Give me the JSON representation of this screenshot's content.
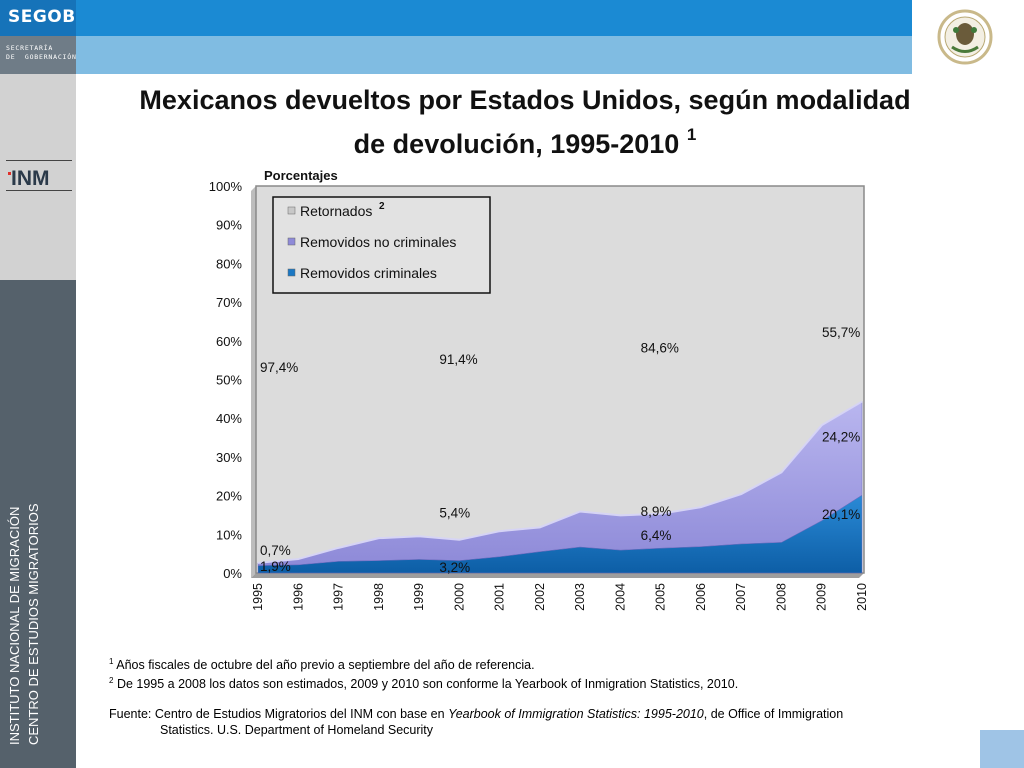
{
  "header": {
    "brand": "SEGOB",
    "secretaria": "SECRETARÍA\nDE  GOBERNACIÓN",
    "logo_inm": "INM"
  },
  "sidebar": {
    "line1": "INSTITUTO NACIONAL DE MIGRACIÓN",
    "line2": "CENTRO DE ESTUDIOS MIGRATORIOS"
  },
  "title": {
    "text": "Mexicanos devueltos por Estados Unidos, según modalidad de devolución, 1995-2010",
    "note_mark": "1"
  },
  "chart_data": {
    "type": "area",
    "stacked": "percent",
    "ylabel": "Porcentajes",
    "ylim": [
      0,
      100
    ],
    "yticks": [
      "0%",
      "10%",
      "20%",
      "30%",
      "40%",
      "50%",
      "60%",
      "70%",
      "80%",
      "90%",
      "100%"
    ],
    "categories": [
      "1995",
      "1996",
      "1997",
      "1998",
      "1999",
      "2000",
      "2001",
      "2002",
      "2003",
      "2004",
      "2005",
      "2006",
      "2007",
      "2008",
      "2009",
      "2010"
    ],
    "series": [
      {
        "name": "Removidos criminales",
        "color": "#1b78c4",
        "values": [
          1.9,
          2.1,
          3.0,
          3.2,
          3.5,
          3.2,
          4.2,
          5.5,
          6.7,
          5.9,
          6.4,
          6.8,
          7.5,
          7.9,
          13.5,
          20.1
        ]
      },
      {
        "name": "Removidos no criminales",
        "color": "#a9a6e6",
        "values": [
          0.7,
          1.5,
          3.5,
          5.8,
          6.0,
          5.4,
          6.6,
          6.3,
          9.2,
          9.0,
          8.9,
          10.2,
          12.9,
          18.1,
          24.7,
          24.2
        ]
      },
      {
        "name": "Retornados",
        "note_mark": "2",
        "color": "#dcdcdc",
        "values": [
          97.4,
          96.4,
          93.5,
          91.0,
          90.5,
          91.4,
          89.2,
          88.2,
          84.1,
          85.1,
          84.6,
          83.0,
          79.6,
          74.0,
          61.8,
          55.7
        ]
      }
    ],
    "data_labels": [
      {
        "text": "97,4%",
        "year": "1995",
        "series": "Retornados"
      },
      {
        "text": "0,7%",
        "year": "1995",
        "series": "Removidos no criminales"
      },
      {
        "text": "1,9%",
        "year": "1995",
        "series": "Removidos criminales"
      },
      {
        "text": "91,4%",
        "year": "2000",
        "series": "Retornados"
      },
      {
        "text": "5,4%",
        "year": "2000",
        "series": "Removidos no criminales"
      },
      {
        "text": "3,2%",
        "year": "2000",
        "series": "Removidos criminales"
      },
      {
        "text": "84,6%",
        "year": "2005",
        "series": "Retornados"
      },
      {
        "text": "8,9%",
        "year": "2005",
        "series": "Removidos no criminales"
      },
      {
        "text": "6,4%",
        "year": "2005",
        "series": "Removidos criminales"
      },
      {
        "text": "55,7%",
        "year": "2010",
        "series": "Retornados"
      },
      {
        "text": "24,2%",
        "year": "2010",
        "series": "Removidos no criminales"
      },
      {
        "text": "20,1%",
        "year": "2010",
        "series": "Removidos criminales"
      }
    ],
    "legend_position": "top-left"
  },
  "notes": {
    "note1_mark": "1",
    "note1": "Años fiscales de octubre del año previo a septiembre del año de referencia.",
    "note2_mark": "2",
    "note2": "De 1995 a 2008 los datos son estimados, 2009 y 2010 son conforme la Yearbook of Inmigration Statistics, 2010.",
    "source_prefix": "Fuente: Centro de Estudios Migratorios del INM con base en ",
    "source_title": "Yearbook of Immigration Statistics: 1995-2010",
    "source_suffix": ", de Office of Immigration",
    "source_line2": "Statistics. U.S. Department of  Homeland Security"
  }
}
